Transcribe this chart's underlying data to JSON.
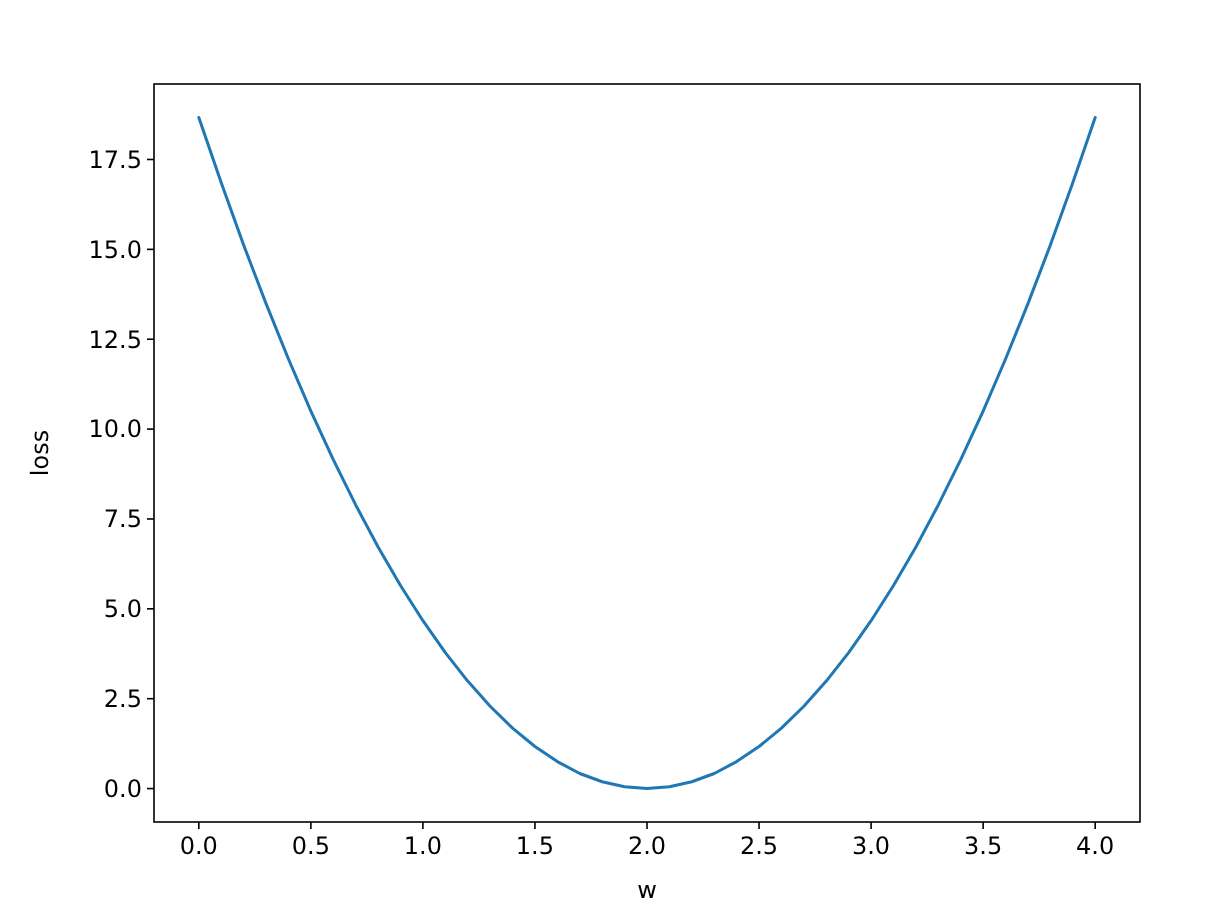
{
  "chart_data": {
    "type": "line",
    "xlabel": "w",
    "ylabel": "loss",
    "x": [
      0,
      0.1,
      0.2,
      0.3,
      0.4,
      0.5,
      0.6,
      0.7,
      0.8,
      0.9,
      1,
      1.1,
      1.2,
      1.3,
      1.4,
      1.5,
      1.6,
      1.7,
      1.8,
      1.9,
      2,
      2.1,
      2.2,
      2.3,
      2.4,
      2.5,
      2.6,
      2.7,
      2.8,
      2.9,
      3,
      3.1,
      3.2,
      3.3,
      3.4,
      3.5,
      3.6,
      3.7,
      3.8,
      3.9,
      4
    ],
    "series": [
      {
        "color": "#1f77b4",
        "values": [
          18.67,
          16.85,
          15.12,
          13.49,
          11.95,
          10.5,
          9.15,
          7.89,
          6.72,
          5.65,
          4.67,
          3.78,
          2.99,
          2.29,
          1.68,
          1.17,
          0.75,
          0.42,
          0.19,
          0.05,
          0,
          0.05,
          0.19,
          0.42,
          0.75,
          1.17,
          1.68,
          2.29,
          2.99,
          3.78,
          4.67,
          5.65,
          6.72,
          7.89,
          9.15,
          10.5,
          11.95,
          13.49,
          15.12,
          16.85,
          18.67
        ]
      }
    ],
    "xlim": [
      -0.2,
      4.2
    ],
    "ylim": [
      -0.93,
      19.6
    ],
    "xticks": [
      {
        "value": 0,
        "label": "0.0"
      },
      0.5,
      {
        "value": 1,
        "label": "1.0"
      },
      1.5,
      {
        "value": 2,
        "label": "2.0"
      },
      2.5,
      {
        "value": 3,
        "label": "3.0"
      },
      3.5,
      {
        "value": 4,
        "label": "4.0"
      }
    ],
    "yticks": [
      {
        "value": 0,
        "label": "0.0"
      },
      2.5,
      {
        "value": 5,
        "label": "5.0"
      },
      7.5,
      {
        "value": 10,
        "label": "10.0"
      },
      12.5,
      {
        "value": 15,
        "label": "15.0"
      },
      17.5
    ],
    "grid": false,
    "marker": "none",
    "line_style": "solid"
  }
}
